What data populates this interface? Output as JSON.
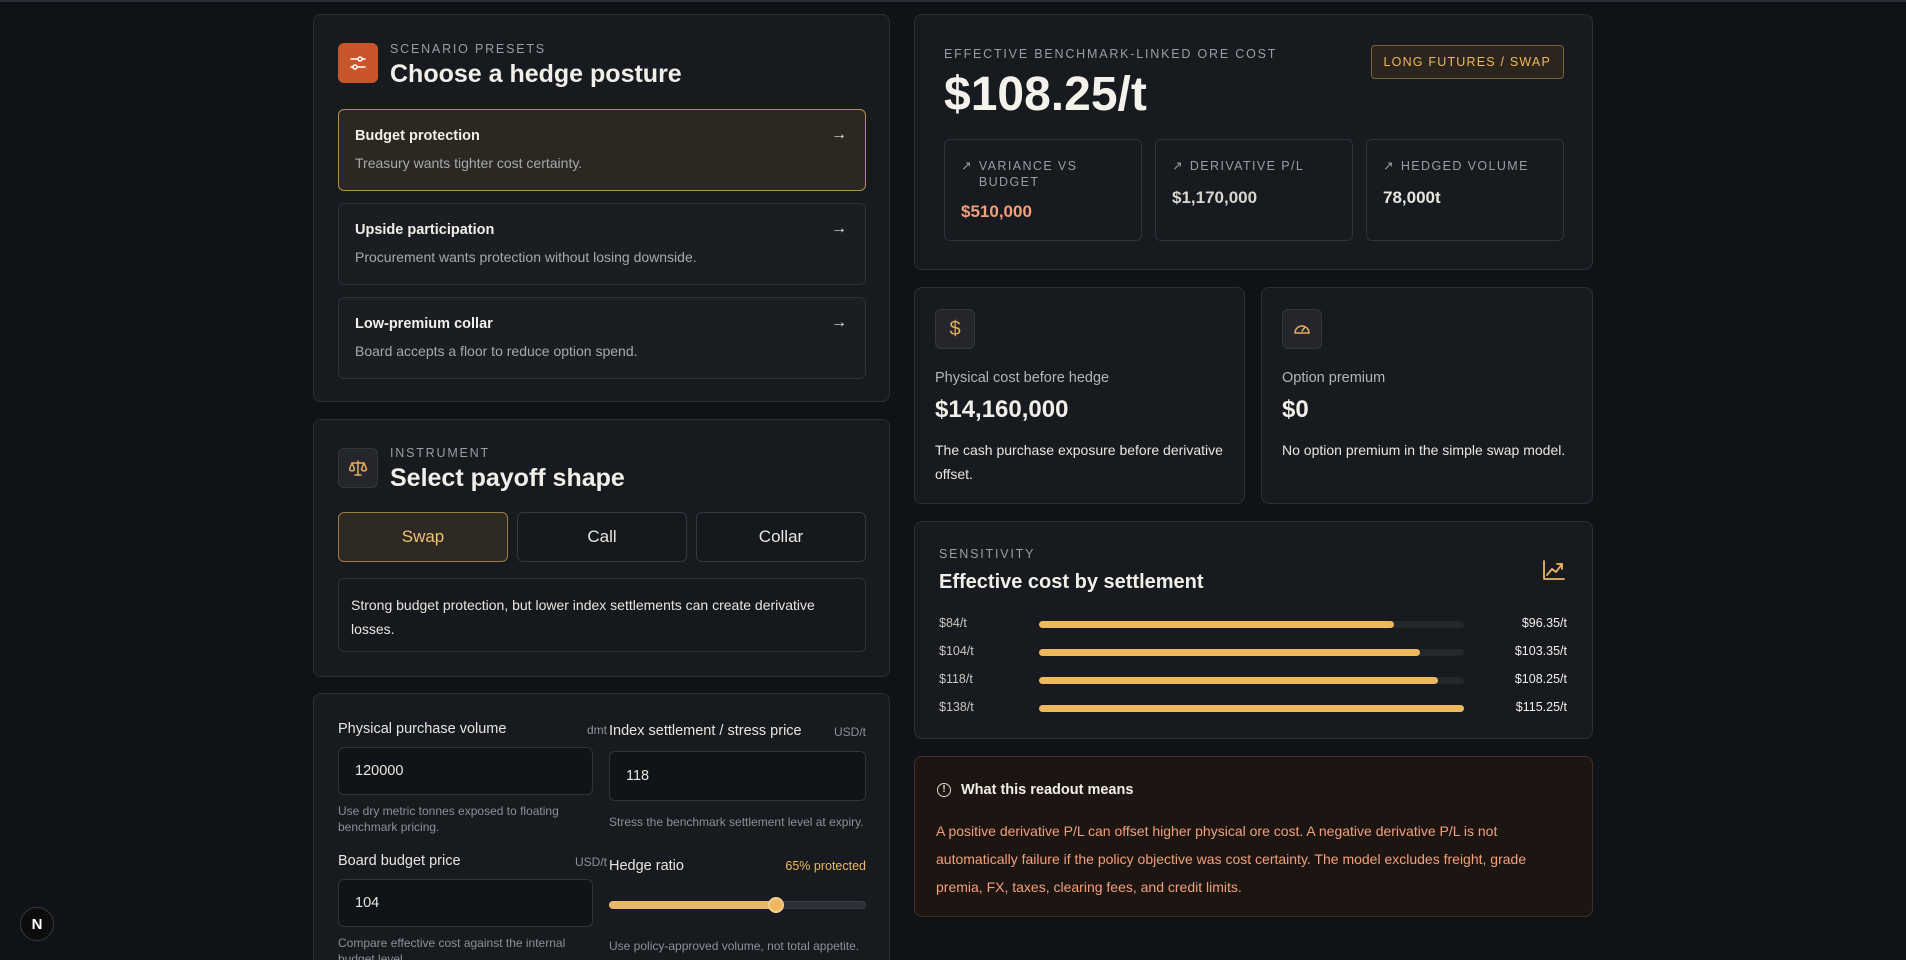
{
  "presets": {
    "eyebrow": "SCENARIO PRESETS",
    "title": "Choose a hedge posture",
    "items": [
      {
        "title": "Budget protection",
        "desc": "Treasury wants tighter cost certainty.",
        "active": true
      },
      {
        "title": "Upside participation",
        "desc": "Procurement wants protection without losing downside.",
        "active": false
      },
      {
        "title": "Low-premium collar",
        "desc": "Board accepts a floor to reduce option spend.",
        "active": false
      }
    ]
  },
  "instrument": {
    "eyebrow": "INSTRUMENT",
    "title": "Select payoff shape",
    "options": [
      "Swap",
      "Call",
      "Collar"
    ],
    "selected": "Swap",
    "note": "Strong budget protection, but lower index settlements can create derivative losses."
  },
  "inputs": {
    "volume": {
      "label": "Physical purchase volume",
      "unit": "dmt",
      "value": "120000",
      "help": "Use dry metric tonnes exposed to floating benchmark pricing."
    },
    "settlement": {
      "label": "Index settlement / stress price",
      "unit": "USD/t",
      "value": "118",
      "help": "Stress the benchmark settlement level at expiry."
    },
    "budget": {
      "label": "Board budget price",
      "unit": "USD/t",
      "value": "104",
      "help": "Compare effective cost against the internal budget level."
    },
    "hedge": {
      "label": "Hedge ratio",
      "status": "65% protected",
      "value": 0.65,
      "help": "Use policy-approved volume, not total appetite."
    }
  },
  "summary": {
    "eyebrow": "EFFECTIVE BENCHMARK-LINKED ORE COST",
    "value": "$108.25/t",
    "badge": "LONG FUTURES / SWAP",
    "kpis": [
      {
        "label": "VARIANCE VS BUDGET",
        "value": "$510,000",
        "accent": "#f2a07b"
      },
      {
        "label": "DERIVATIVE P/L",
        "value": "$1,170,000",
        "accent": "#d9d6cf"
      },
      {
        "label": "HEDGED VOLUME",
        "value": "78,000t",
        "accent": "#f2efe8"
      }
    ]
  },
  "physical": {
    "label": "Physical cost before hedge",
    "value": "$14,160,000",
    "desc": "The cash purchase exposure before derivative offset."
  },
  "premium": {
    "label": "Option premium",
    "value": "$0",
    "desc": "No option premium in the simple swap model."
  },
  "sensitivity": {
    "eyebrow": "SENSITIVITY",
    "title": "Effective cost by settlement",
    "rows": [
      {
        "label": "$84/t",
        "value": "$96.35/t",
        "fill": 0.836
      },
      {
        "label": "$104/t",
        "value": "$103.35/t",
        "fill": 0.897
      },
      {
        "label": "$118/t",
        "value": "$108.25/t",
        "fill": 0.939
      },
      {
        "label": "$138/t",
        "value": "$115.25/t",
        "fill": 1.0
      }
    ]
  },
  "readout": {
    "title": "What this readout means",
    "body": "A positive derivative P/L can offset higher physical ore cost. A negative derivative P/L is not automatically failure if the policy objective was cost certainty. The model excludes freight, grade premia, FX, taxes, clearing fees, and credit limits."
  },
  "icons": {
    "preset": "sliders-icon",
    "instrument": "scale-icon",
    "dollar": "dollar-icon",
    "gauge": "gauge-icon",
    "chart": "trend-chart-icon",
    "info": "info-icon",
    "devtools": "next-logo-icon"
  },
  "colors": {
    "accent": "#efb85e",
    "brand": "#c9552a"
  }
}
